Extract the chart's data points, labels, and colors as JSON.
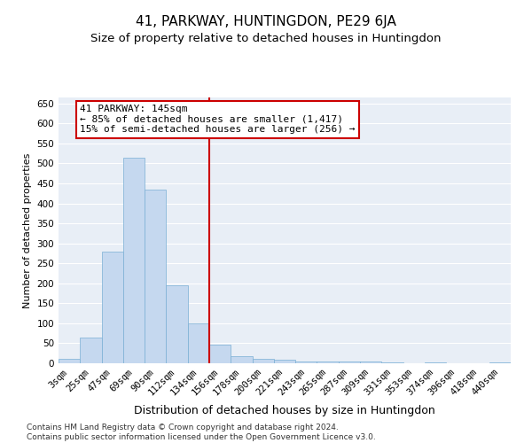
{
  "title": "41, PARKWAY, HUNTINGDON, PE29 6JA",
  "subtitle": "Size of property relative to detached houses in Huntingdon",
  "xlabel": "Distribution of detached houses by size in Huntingdon",
  "ylabel": "Number of detached properties",
  "categories": [
    "3sqm",
    "25sqm",
    "47sqm",
    "69sqm",
    "90sqm",
    "112sqm",
    "134sqm",
    "156sqm",
    "178sqm",
    "200sqm",
    "221sqm",
    "243sqm",
    "265sqm",
    "287sqm",
    "309sqm",
    "331sqm",
    "353sqm",
    "374sqm",
    "396sqm",
    "418sqm",
    "440sqm"
  ],
  "values": [
    10,
    65,
    280,
    515,
    435,
    195,
    100,
    47,
    18,
    11,
    8,
    5,
    5,
    4,
    4,
    3,
    0,
    3,
    0,
    0,
    3
  ],
  "bar_color": "#c5d8ef",
  "bar_edge_color": "#7aafd4",
  "vline_color": "#cc0000",
  "annotation_text": "41 PARKWAY: 145sqm\n← 85% of detached houses are smaller (1,417)\n15% of semi-detached houses are larger (256) →",
  "annotation_box_color": "#ffffff",
  "annotation_border_color": "#cc0000",
  "ylim": [
    0,
    665
  ],
  "yticks": [
    0,
    50,
    100,
    150,
    200,
    250,
    300,
    350,
    400,
    450,
    500,
    550,
    600,
    650
  ],
  "background_color": "#e8eef6",
  "grid_color": "#ffffff",
  "footnote": "Contains HM Land Registry data © Crown copyright and database right 2024.\nContains public sector information licensed under the Open Government Licence v3.0.",
  "title_fontsize": 11,
  "subtitle_fontsize": 9.5,
  "xlabel_fontsize": 9,
  "ylabel_fontsize": 8,
  "tick_fontsize": 7.5,
  "annotation_fontsize": 8,
  "footnote_fontsize": 6.5
}
